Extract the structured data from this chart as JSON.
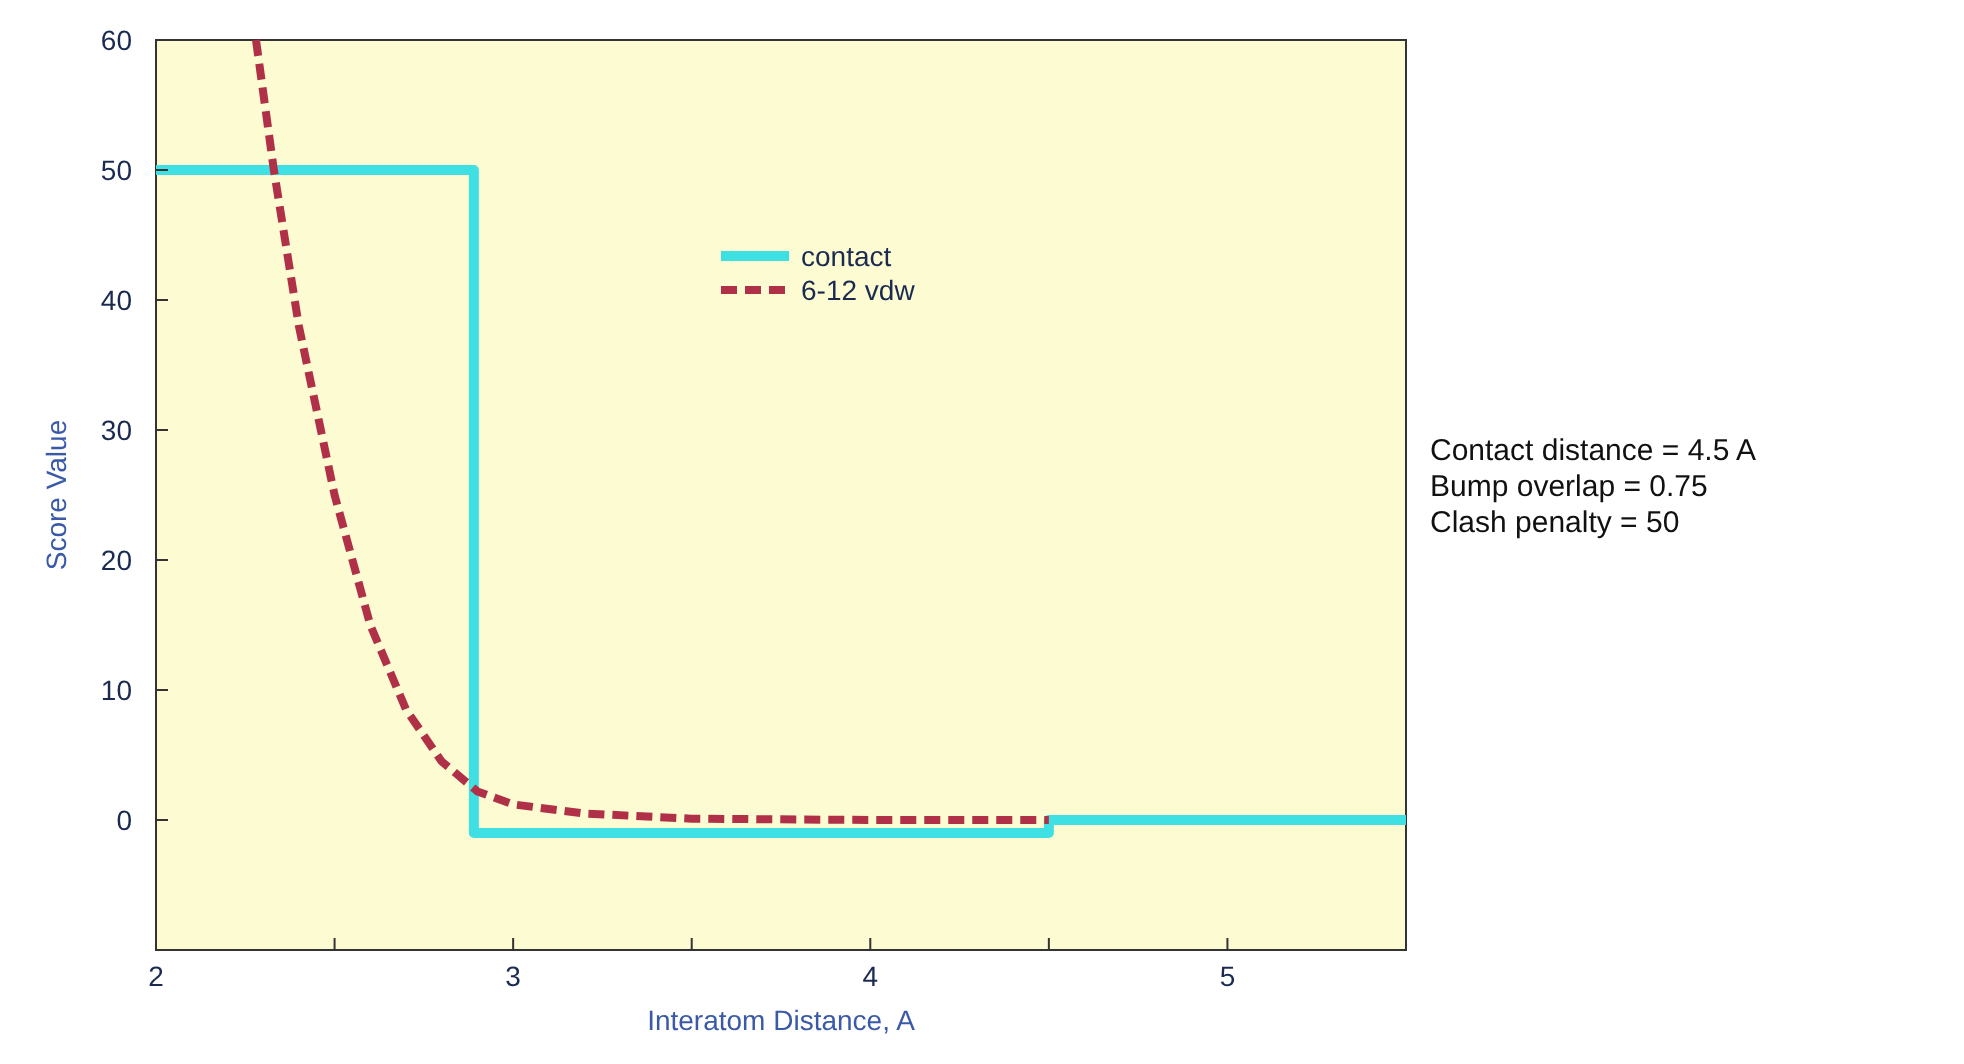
{
  "chart_data": {
    "type": "line",
    "xlabel": "Interatom Distance, A",
    "ylabel": "Score Value",
    "xlim": [
      2,
      5.5
    ],
    "ylim": [
      -10,
      60
    ],
    "xticks": [
      2,
      {
        "value": 2.5,
        "label": null
      },
      3,
      {
        "value": 3.5,
        "label": null
      },
      4,
      {
        "value": 4.5,
        "label": null
      },
      5
    ],
    "yticks": [
      0,
      10,
      20,
      30,
      40,
      50,
      60
    ],
    "grid": false,
    "legend": "top",
    "series": [
      {
        "name": "contact",
        "type": "step",
        "color": "#3ee0e4",
        "line_style": "solid",
        "x": [
          2,
          2.89,
          4.5,
          5.5
        ],
        "values": [
          50,
          -1,
          0,
          0
        ]
      },
      {
        "name": "6-12 vdw",
        "color": "#b03048",
        "line_style": "dashed",
        "x": [
          2.28,
          2.33,
          2.4,
          2.5,
          2.6,
          2.7,
          2.8,
          2.9,
          3.0,
          3.2,
          3.5,
          4.0,
          4.5
        ],
        "values": [
          60,
          50,
          38,
          25,
          15,
          8.5,
          4.5,
          2.2,
          1.2,
          0.5,
          0.1,
          0,
          0
        ]
      }
    ],
    "annotations": [
      "Contact distance = 4.5 A",
      "Bump overlap = 0.75",
      "Clash penalty = 50"
    ]
  }
}
